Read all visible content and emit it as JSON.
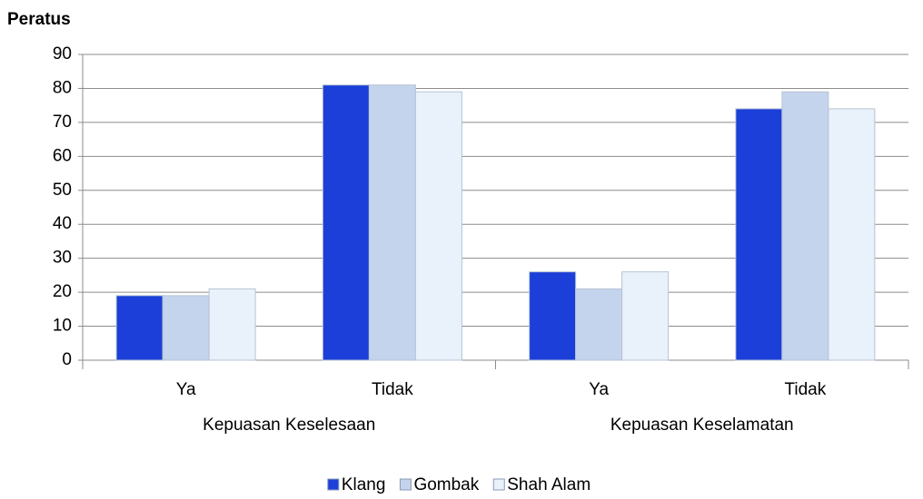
{
  "chart_data": {
    "type": "bar",
    "y_label": "Peratus",
    "categories": [
      "Ya",
      "Tidak",
      "Ya",
      "Tidak"
    ],
    "groups": [
      "Kepuasan Keselesaan",
      "Kepuasan Keselamatan"
    ],
    "series": [
      {
        "name": "Klang",
        "color": "#1b3fd8",
        "values": [
          19,
          81,
          26,
          74
        ]
      },
      {
        "name": "Gombak",
        "color": "#c3d4ec",
        "values": [
          19,
          81,
          21,
          79
        ]
      },
      {
        "name": "Shah Alam",
        "color": "#e9f1fb",
        "values": [
          21,
          79,
          26,
          74
        ]
      }
    ],
    "ylim": [
      0,
      90
    ],
    "yticks": [
      0,
      10,
      20,
      30,
      40,
      50,
      60,
      70,
      80,
      90
    ],
    "grid": true,
    "legend": "bottom"
  }
}
